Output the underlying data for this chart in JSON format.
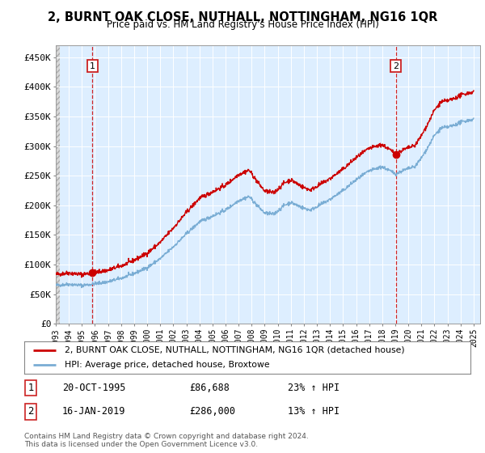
{
  "title": "2, BURNT OAK CLOSE, NUTHALL, NOTTINGHAM, NG16 1QR",
  "subtitle": "Price paid vs. HM Land Registry's House Price Index (HPI)",
  "ylim": [
    0,
    470000
  ],
  "xlim_start": 1993.0,
  "xlim_end": 2025.5,
  "yticks": [
    0,
    50000,
    100000,
    150000,
    200000,
    250000,
    300000,
    350000,
    400000,
    450000
  ],
  "ytick_labels": [
    "£0",
    "£50K",
    "£100K",
    "£150K",
    "£200K",
    "£250K",
    "£300K",
    "£350K",
    "£400K",
    "£450K"
  ],
  "sale1_date": 1995.8,
  "sale1_price": 86688,
  "sale2_date": 2019.05,
  "sale2_price": 286000,
  "legend_line1": "2, BURNT OAK CLOSE, NUTHALL, NOTTINGHAM, NG16 1QR (detached house)",
  "legend_line2": "HPI: Average price, detached house, Broxtowe",
  "annotation1_date": "20-OCT-1995",
  "annotation1_price": "£86,688",
  "annotation1_hpi": "23% ↑ HPI",
  "annotation2_date": "16-JAN-2019",
  "annotation2_price": "£286,000",
  "annotation2_hpi": "13% ↑ HPI",
  "footer": "Contains HM Land Registry data © Crown copyright and database right 2024.\nThis data is licensed under the Open Government Licence v3.0.",
  "line_color_red": "#cc0000",
  "line_color_blue": "#7aadd4",
  "bg_color": "#ddeeff",
  "hatch_bg": "#d8d8d8"
}
